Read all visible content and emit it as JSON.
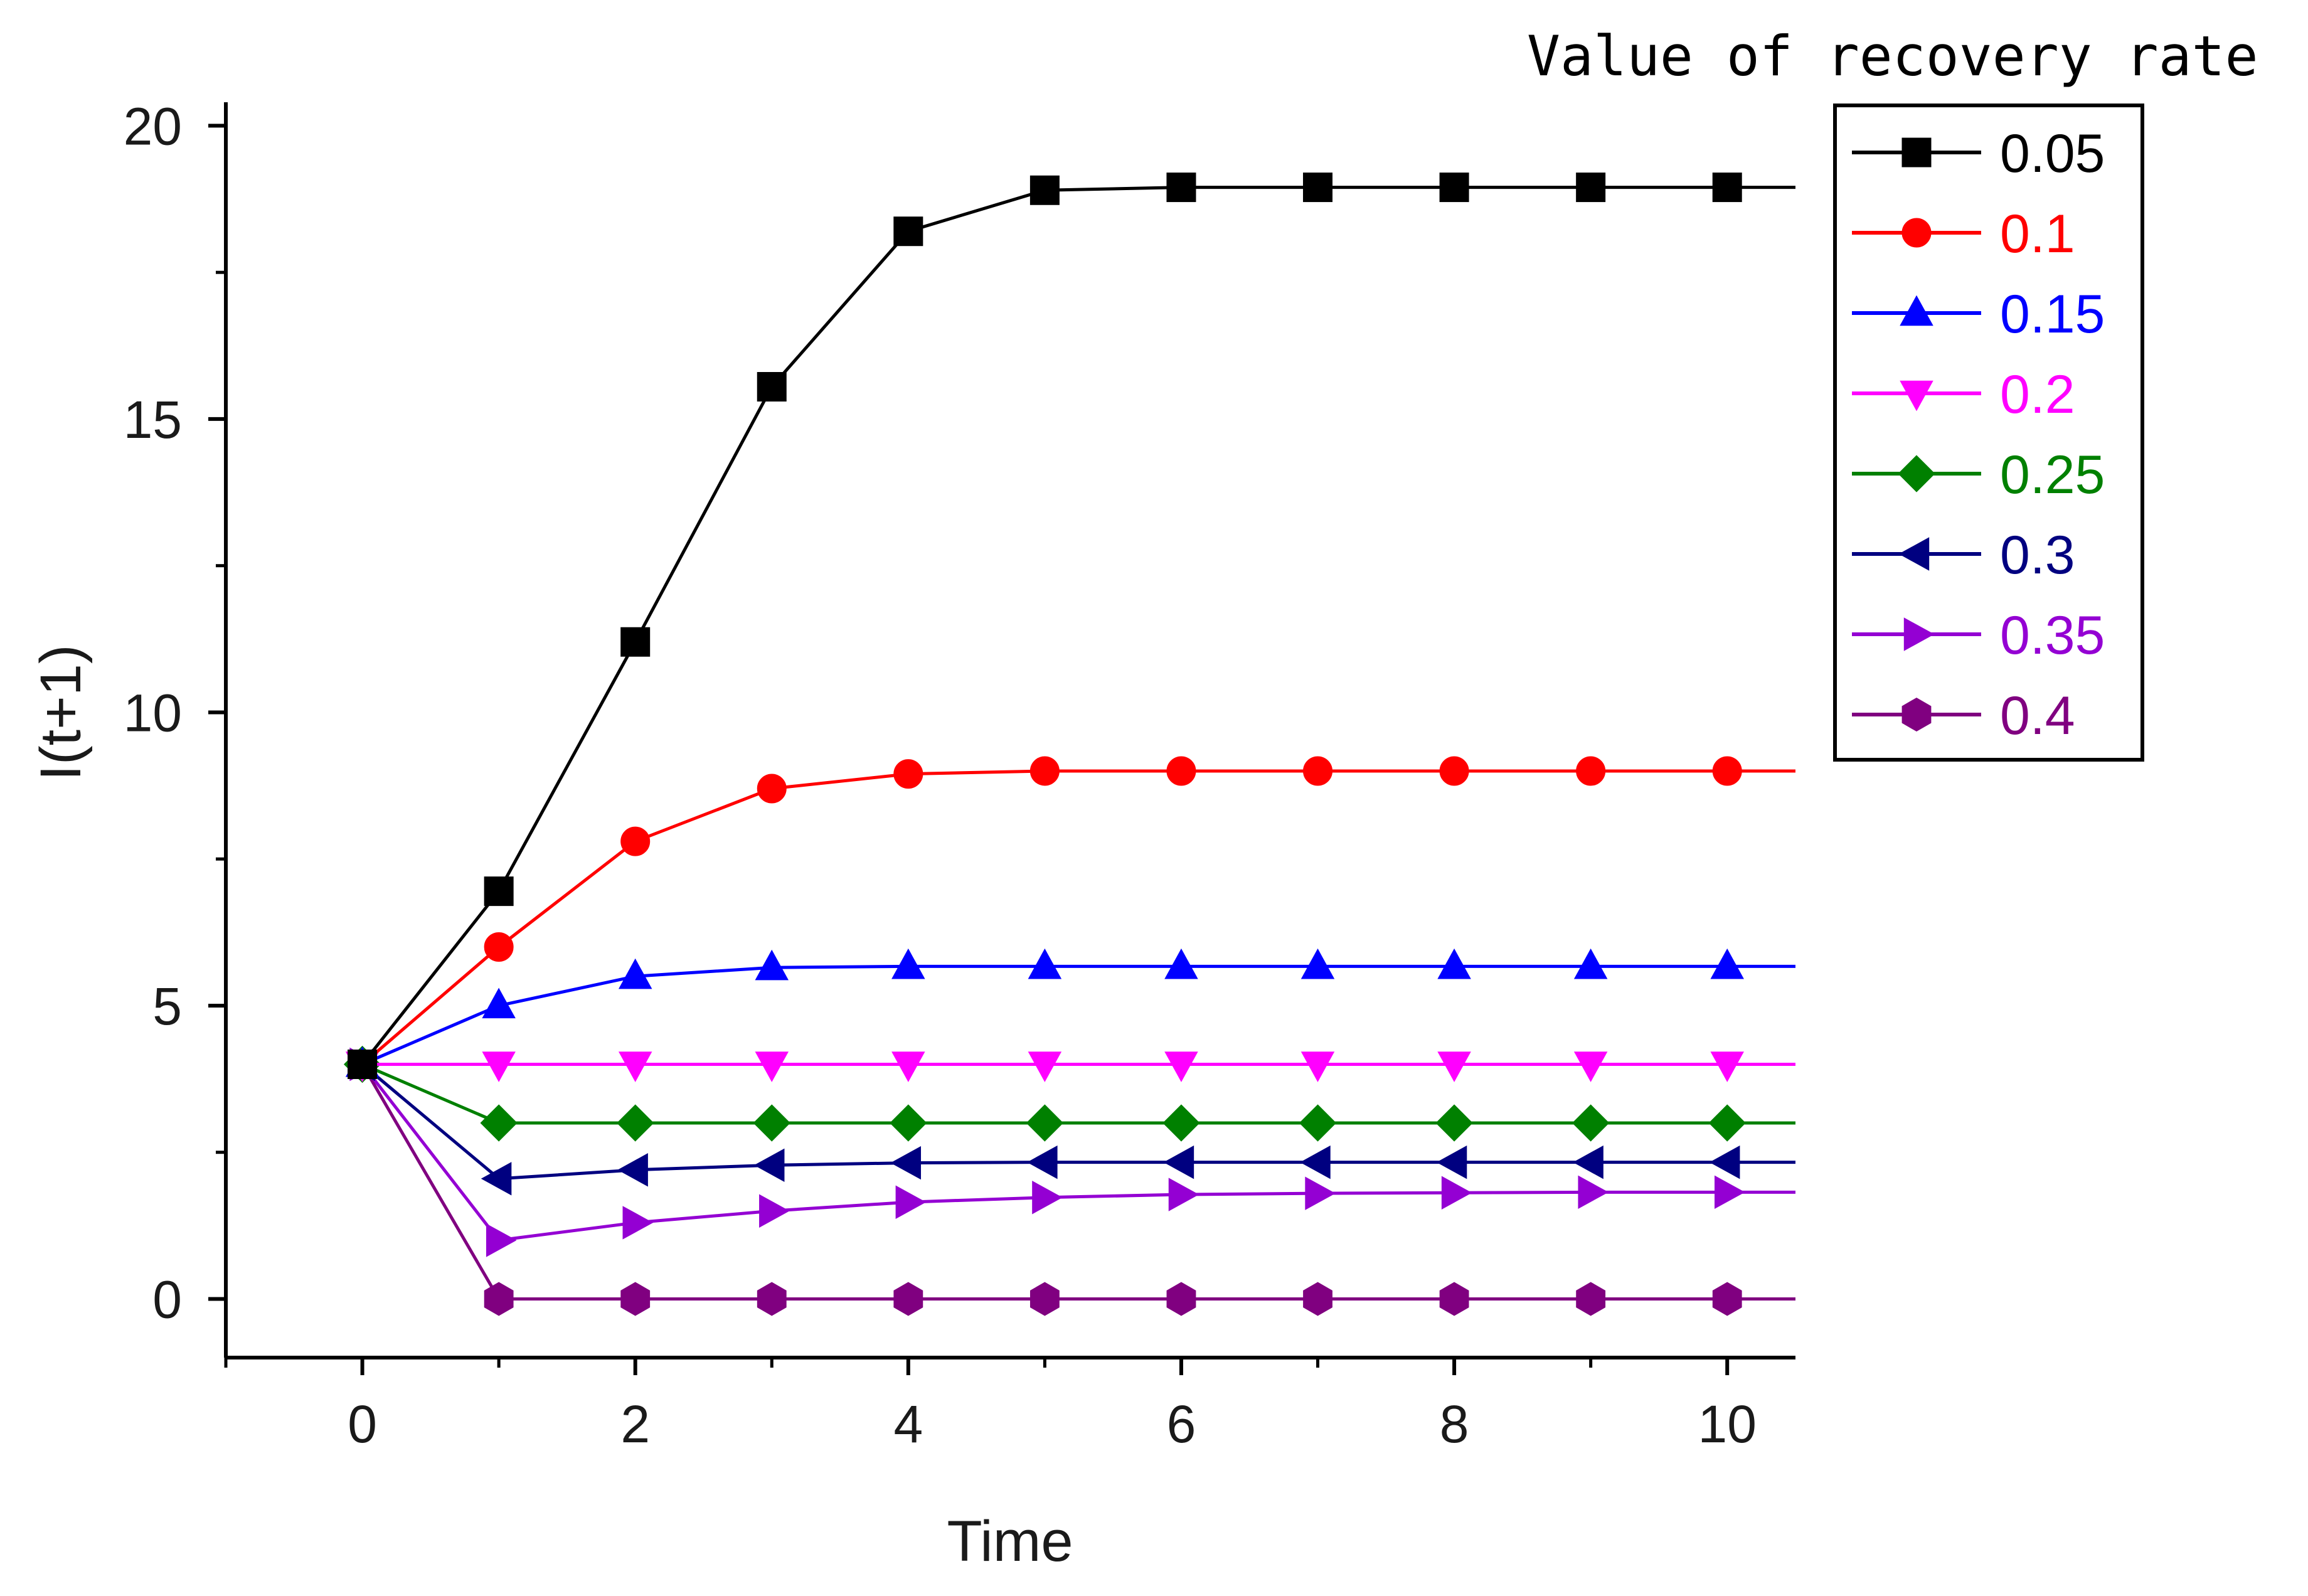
{
  "chart_data": {
    "type": "line",
    "title": "",
    "xlabel": "Time",
    "ylabel": "I(t+1)",
    "xlim": [
      -1,
      10.5
    ],
    "ylim": [
      -1,
      20.4
    ],
    "xticks": [
      0,
      2,
      4,
      6,
      8,
      10
    ],
    "xtick_labels": [
      "0",
      "2",
      "4",
      "6",
      "8",
      "10"
    ],
    "yticks": [
      0,
      5,
      10,
      15,
      20
    ],
    "ytick_labels": [
      "0",
      "5",
      "10",
      "15",
      "20"
    ],
    "x": [
      0,
      1,
      2,
      3,
      4,
      5,
      6,
      7,
      8,
      9,
      10
    ],
    "legend_title": "Value of recovery rate",
    "legend_position": "outside-top-right",
    "grid": false,
    "series": [
      {
        "name": "0.05",
        "color": "#000000",
        "marker": "square",
        "values": [
          4,
          6.95,
          11.2,
          15.55,
          18.2,
          18.9,
          18.95,
          18.95,
          18.95,
          18.95,
          18.95
        ]
      },
      {
        "name": "0.1",
        "color": "#ff0000",
        "marker": "circle",
        "values": [
          4,
          6.0,
          7.8,
          8.7,
          8.95,
          9.0,
          9.0,
          9.0,
          9.0,
          9.0,
          9.0
        ]
      },
      {
        "name": "0.15",
        "color": "#0000ff",
        "marker": "triangle-up",
        "values": [
          4,
          5.0,
          5.5,
          5.65,
          5.67,
          5.67,
          5.67,
          5.67,
          5.67,
          5.67,
          5.67
        ]
      },
      {
        "name": "0.2",
        "color": "#ff00ff",
        "marker": "triangle-down",
        "values": [
          4,
          4,
          4,
          4,
          4,
          4,
          4,
          4,
          4,
          4,
          4
        ]
      },
      {
        "name": "0.25",
        "color": "#008000",
        "marker": "diamond",
        "values": [
          4,
          3.0,
          3.0,
          3.0,
          3.0,
          3.0,
          3.0,
          3.0,
          3.0,
          3.0,
          3.0
        ]
      },
      {
        "name": "0.3",
        "color": "#000080",
        "marker": "triangle-left",
        "values": [
          4,
          2.05,
          2.2,
          2.28,
          2.32,
          2.33,
          2.33,
          2.33,
          2.33,
          2.33,
          2.33
        ]
      },
      {
        "name": "0.35",
        "color": "#9400d3",
        "marker": "triangle-right",
        "values": [
          4,
          1.0,
          1.3,
          1.5,
          1.65,
          1.73,
          1.78,
          1.8,
          1.81,
          1.82,
          1.82
        ]
      },
      {
        "name": "0.4",
        "color": "#800080",
        "marker": "hexagon",
        "values": [
          4,
          0,
          0,
          0,
          0,
          0,
          0,
          0,
          0,
          0,
          0
        ]
      }
    ]
  }
}
